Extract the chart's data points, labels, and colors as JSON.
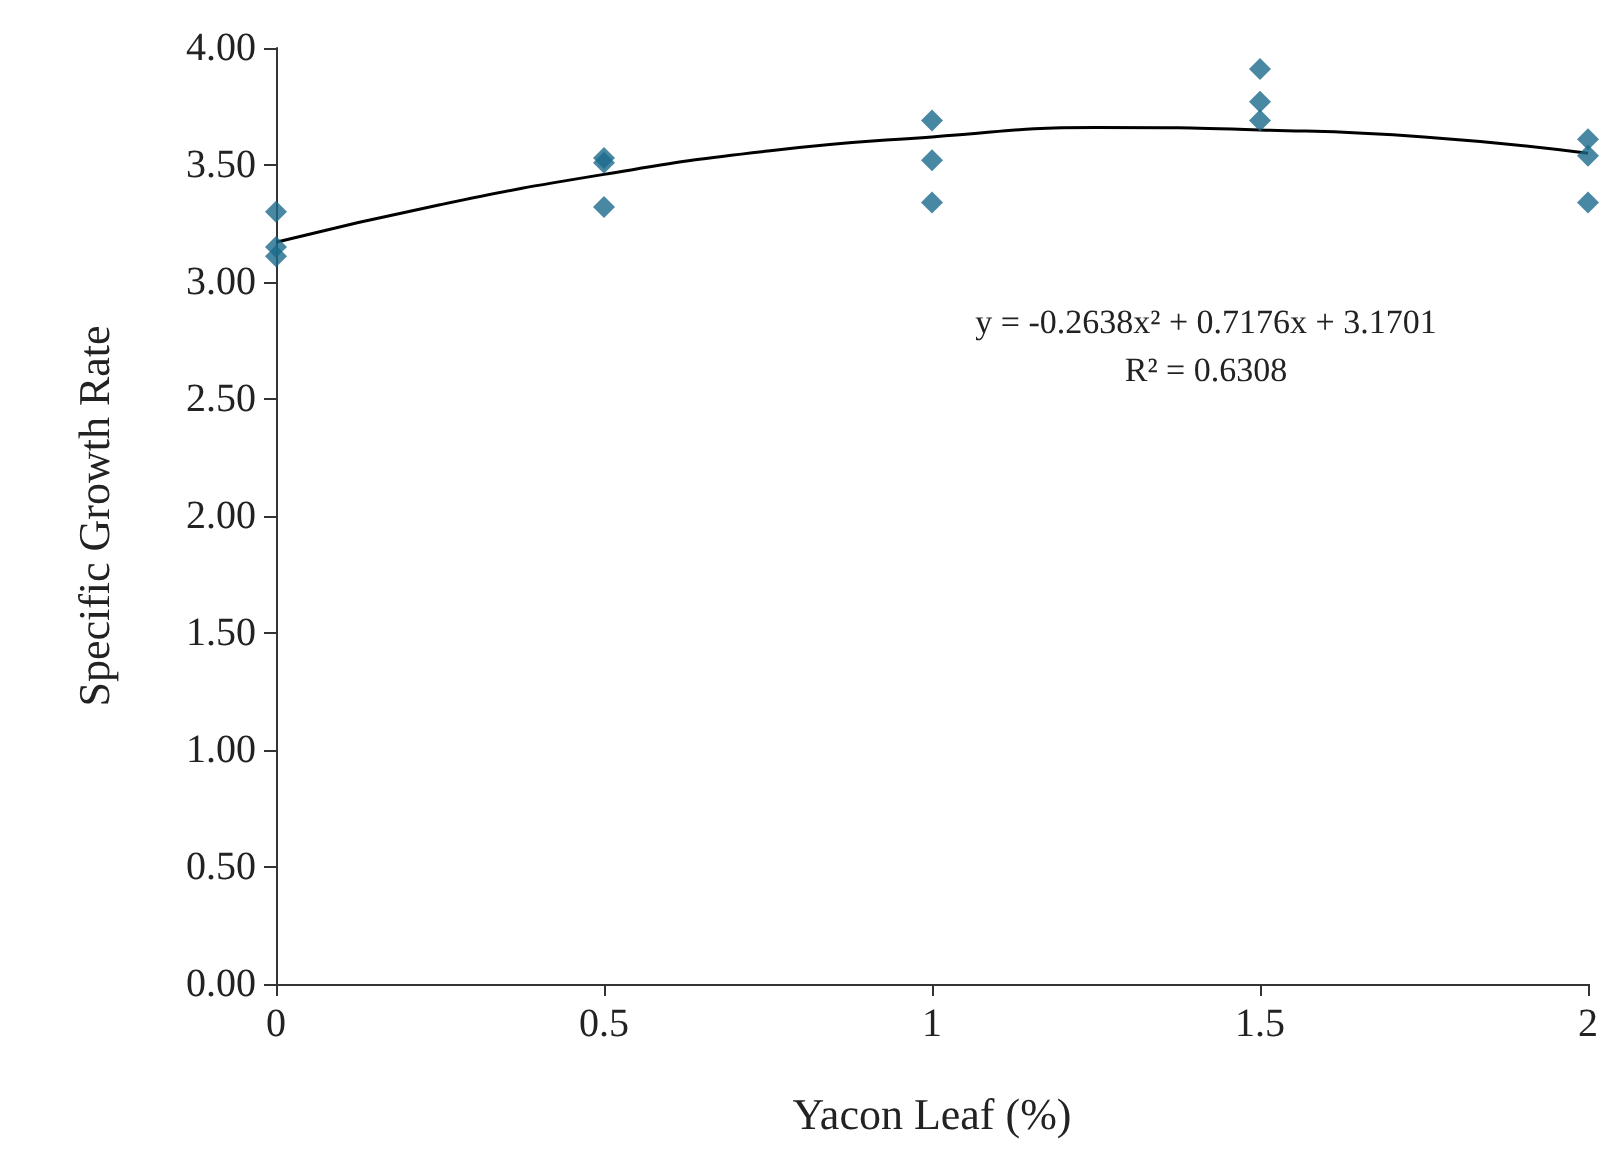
{
  "chart_data": {
    "type": "scatter",
    "xlabel": "Yacon Leaf (%)",
    "ylabel": "Specific Growth Rate",
    "xlim": [
      0,
      2
    ],
    "xticks": [
      0,
      0.5,
      1,
      1.5,
      2
    ],
    "ylim": [
      0,
      4
    ],
    "yticks": [
      {
        "value": 0,
        "label": "0.00"
      },
      {
        "value": 0.5,
        "label": "0.50"
      },
      {
        "value": 1,
        "label": "1.00"
      },
      {
        "value": 1.5,
        "label": "1.50"
      },
      {
        "value": 2,
        "label": "2.00"
      },
      {
        "value": 2.5,
        "label": "2.50"
      },
      {
        "value": 3,
        "label": "3.00"
      },
      {
        "value": 3.5,
        "label": "3.50"
      },
      {
        "value": 4,
        "label": "4.00"
      }
    ],
    "grid": false,
    "marker": "diamond",
    "series": [
      {
        "color": "#1b6a8c",
        "x": [
          0,
          0,
          0,
          0.5,
          0.5,
          0.5,
          1,
          1,
          1,
          1.5,
          1.5,
          1.5,
          2,
          2,
          2
        ],
        "values": [
          3.3,
          3.15,
          3.11,
          3.53,
          3.51,
          3.32,
          3.69,
          3.52,
          3.34,
          3.91,
          3.77,
          3.69,
          3.61,
          3.54,
          3.34
        ]
      },
      {
        "type": "line",
        "color": "#000000",
        "marker": "none",
        "line_style": "solid",
        "x": [
          0,
          0.25,
          0.5,
          0.75,
          1,
          1.25,
          1.5,
          1.75,
          2
        ],
        "values": [
          3.17,
          3.33,
          3.46,
          3.56,
          3.62,
          3.66,
          3.65,
          3.62,
          3.55
        ]
      }
    ],
    "annotations": [
      "y = -0.2638x² + 0.7176x + 3.1701\nR² = 0.6308"
    ]
  }
}
